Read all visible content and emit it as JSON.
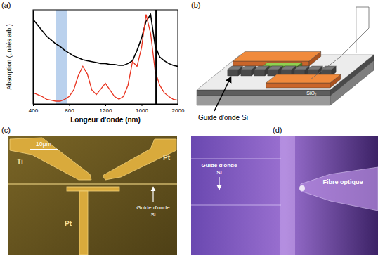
{
  "chart_data": {
    "type": "line",
    "title": "(a)",
    "x_label": "Longeur d'onde (nm)",
    "y_label": "Absorption (unités arb.)",
    "x": [
      400,
      450,
      500,
      550,
      600,
      650,
      700,
      750,
      800,
      850,
      900,
      950,
      1000,
      1050,
      1100,
      1150,
      1200,
      1250,
      1300,
      1350,
      1400,
      1450,
      1500,
      1550,
      1600,
      1650,
      1700,
      1750,
      1800,
      1850,
      1900,
      1950,
      2000
    ],
    "series": [
      {
        "color": "#000000",
        "values": [
          0.9,
          0.84,
          0.78,
          0.72,
          0.68,
          0.64,
          0.61,
          0.57,
          0.54,
          0.51,
          0.49,
          0.47,
          0.46,
          0.45,
          0.44,
          0.43,
          0.43,
          0.42,
          0.42,
          0.41,
          0.41,
          0.43,
          0.46,
          0.57,
          0.7,
          0.88,
          0.95,
          0.62,
          0.5,
          0.46,
          0.43,
          0.41,
          0.4
        ]
      },
      {
        "color": "#e8321e",
        "values": [
          0.12,
          0.1,
          0.08,
          0.05,
          0.04,
          0.03,
          0.03,
          0.05,
          0.08,
          0.15,
          0.3,
          0.4,
          0.32,
          0.15,
          0.1,
          0.16,
          0.22,
          0.15,
          0.08,
          0.05,
          0.08,
          0.2,
          0.45,
          0.4,
          0.6,
          0.95,
          0.75,
          0.35,
          0.2,
          0.12,
          0.08,
          0.05,
          0.04
        ]
      }
    ],
    "xlim": [
      400,
      2000
    ],
    "xticks": [
      400,
      800,
      1200,
      1600,
      2000
    ],
    "ylim": [
      0,
      1
    ],
    "tick_labels": "x",
    "highlight_range": [
      650,
      780
    ],
    "vline": 1760
  },
  "diagram": {
    "label": "(b)",
    "substrate_label": "SiO₂",
    "callout": "Guide d'onde Si"
  },
  "micrograph": {
    "label": "(c)",
    "scale_bar": "10µm",
    "electrodes": [
      "Ti",
      "Pt",
      "Pt"
    ],
    "callout": [
      "Guide d'onde",
      "Si"
    ]
  },
  "photo": {
    "label": "(d)",
    "waveguide": [
      "Guide d'onde",
      "Si"
    ],
    "fiber": "Fibre optique"
  }
}
